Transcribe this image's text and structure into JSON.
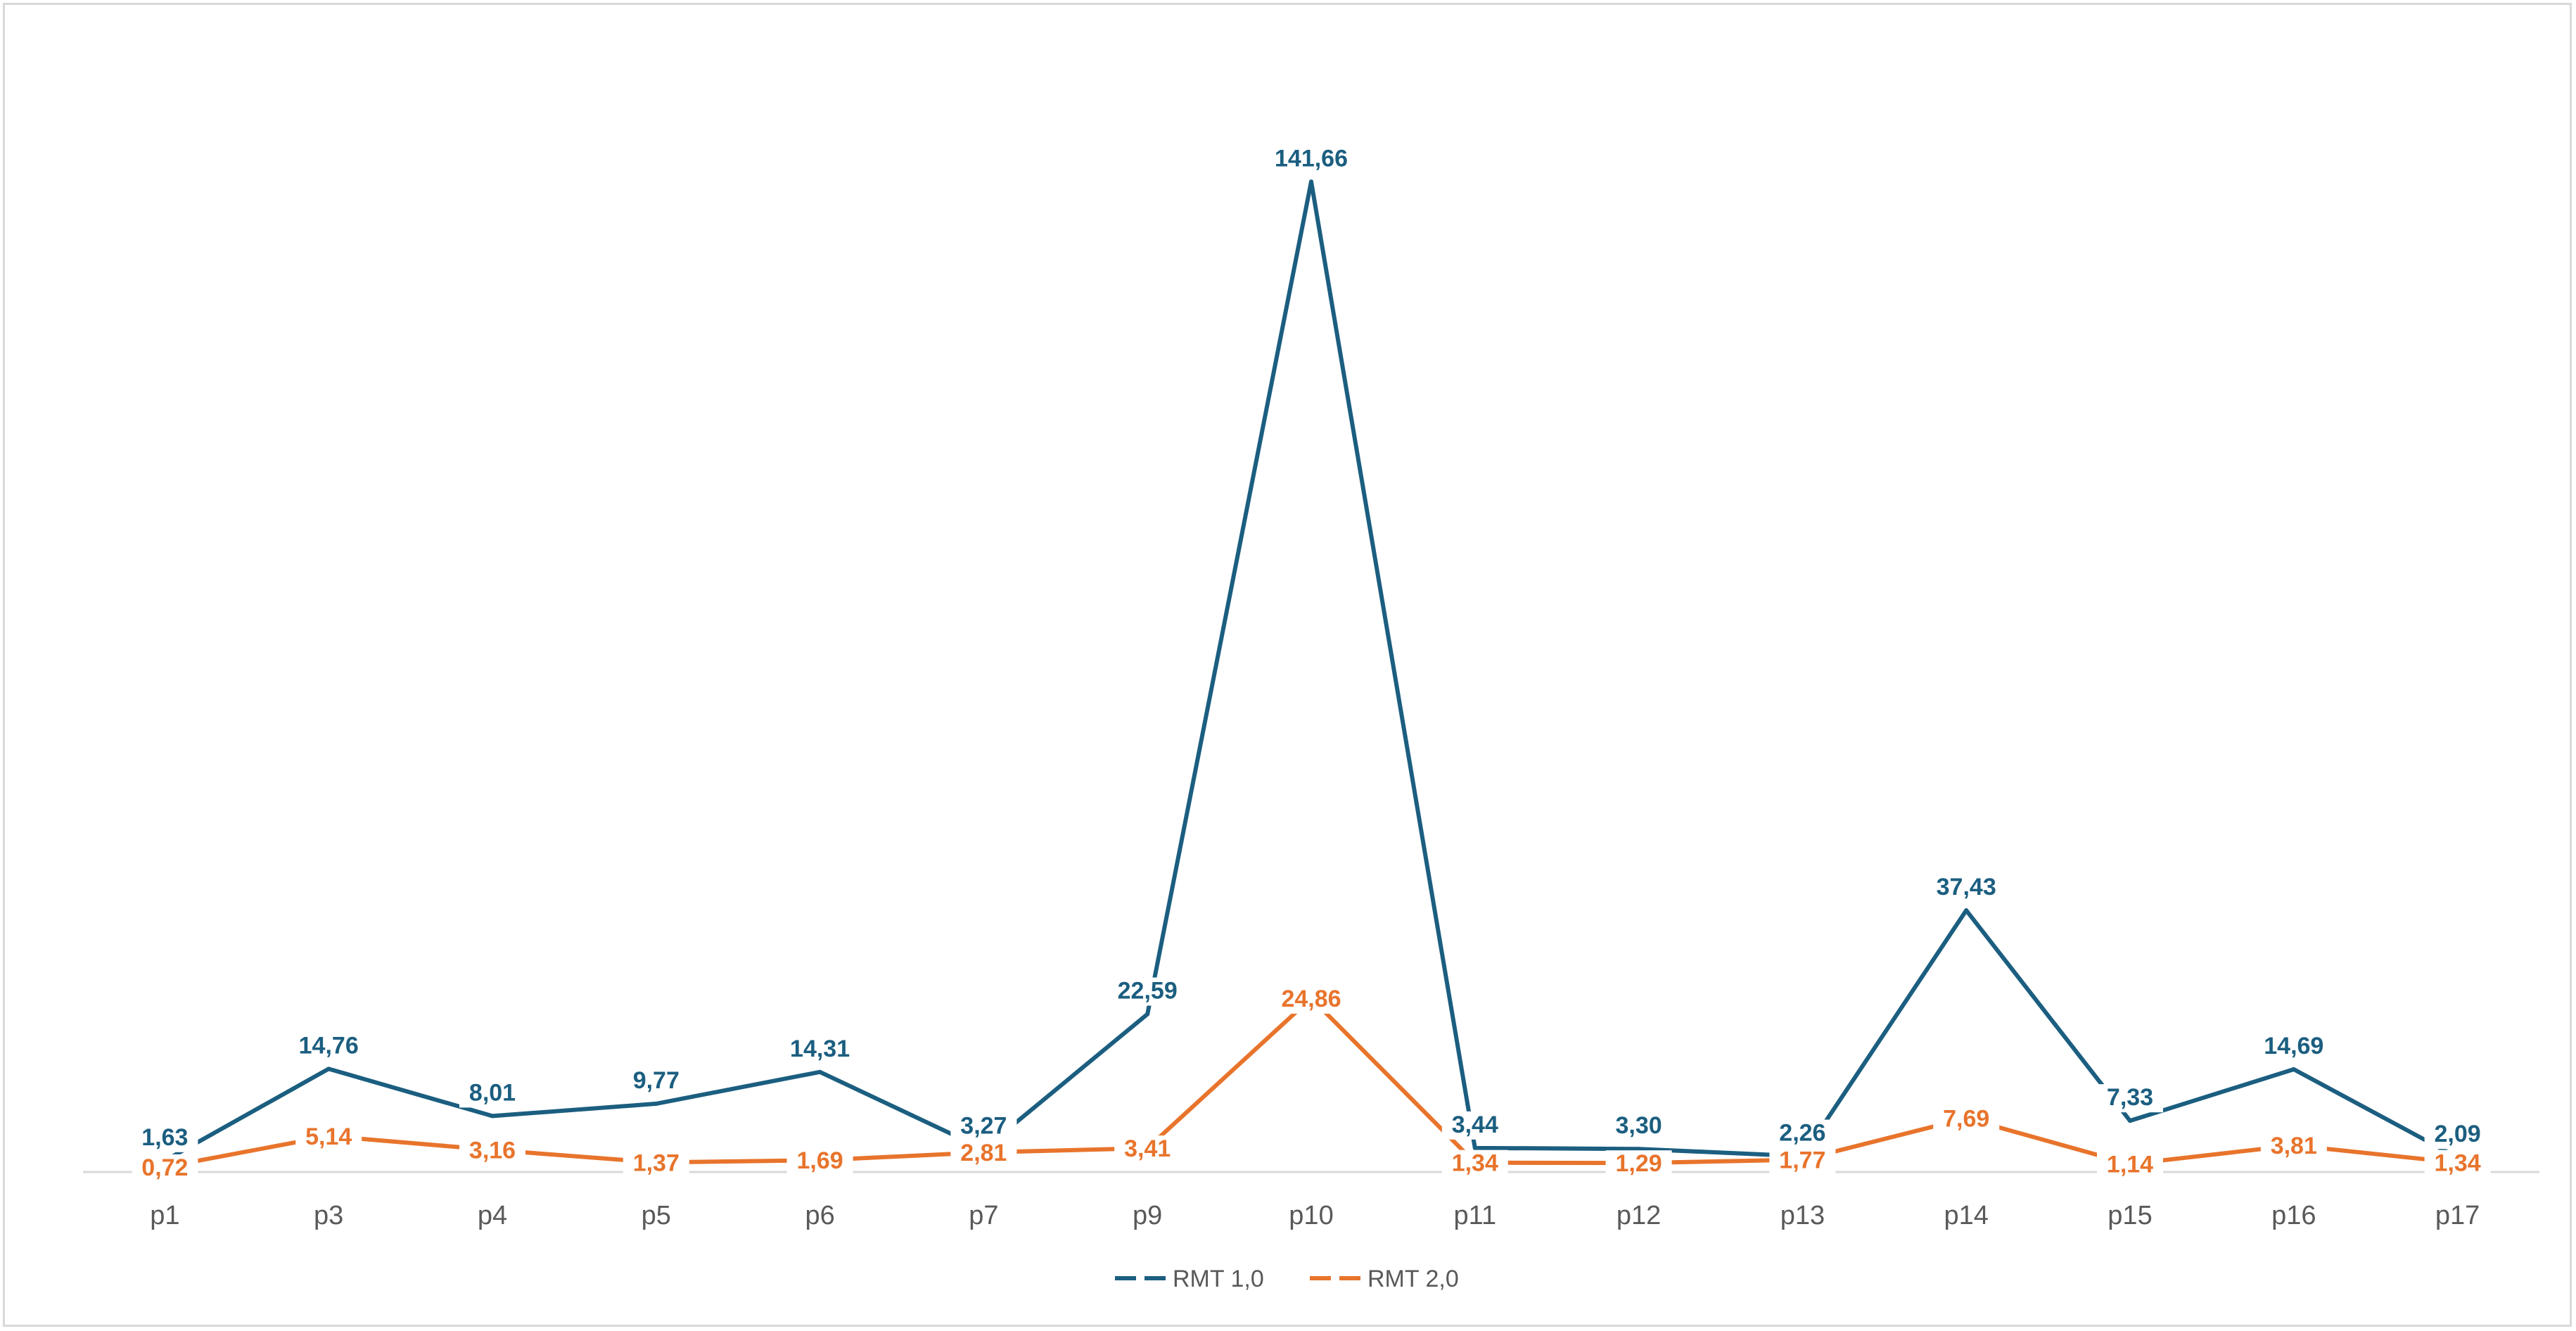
{
  "chart_data": {
    "type": "line",
    "categories": [
      "p1",
      "p3",
      "p4",
      "p5",
      "p6",
      "p7",
      "p9",
      "p10",
      "p11",
      "p12",
      "p13",
      "p14",
      "p15",
      "p16",
      "p17"
    ],
    "series": [
      {
        "name": "RMT 1,0",
        "color": "#1b5e80",
        "values": [
          1.63,
          14.76,
          8.01,
          9.77,
          14.31,
          3.27,
          22.59,
          141.66,
          3.44,
          3.3,
          2.26,
          37.43,
          7.33,
          14.69,
          2.09
        ],
        "labels": [
          "1,63",
          "14,76",
          "8,01",
          "9,77",
          "14,31",
          "3,27",
          "22,59",
          "141,66",
          "3,44",
          "3,30",
          "2,26",
          "37,43",
          "7,33",
          "14,69",
          "2,09"
        ]
      },
      {
        "name": "RMT 2,0",
        "color": "#e8742c",
        "values": [
          0.72,
          5.14,
          3.16,
          1.37,
          1.69,
          2.81,
          3.41,
          24.86,
          1.34,
          1.29,
          1.77,
          7.69,
          1.14,
          3.81,
          1.34
        ],
        "labels": [
          "0,72",
          "5,14",
          "3,16",
          "1,37",
          "1,69",
          "2,81",
          "3,41",
          "24,86",
          "1,34",
          "1,29",
          "1,77",
          "7,69",
          "1,14",
          "3,81",
          "1,34"
        ]
      }
    ],
    "ylim": [
      0,
      160
    ],
    "grid": false,
    "legend_position": "bottom",
    "title": "",
    "xlabel": "",
    "ylabel": ""
  }
}
